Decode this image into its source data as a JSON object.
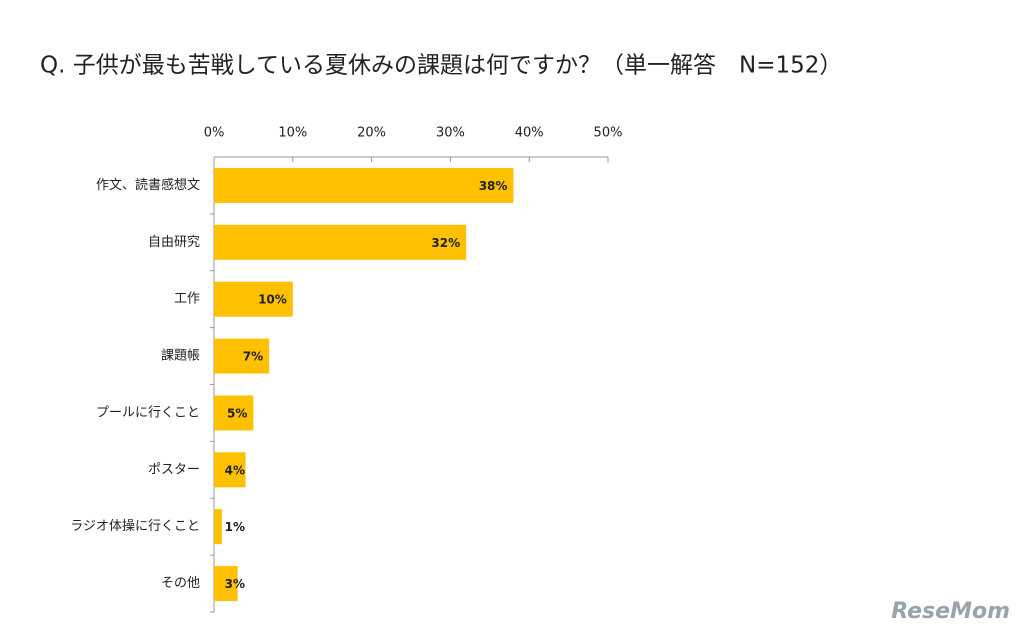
{
  "chart_data": {
    "type": "hbar",
    "title": "Q.  子供が最も苦戦している夏休みの課題は何ですか？（単一解答　N=152）",
    "categories": [
      "作文、読書感想文",
      "自由研究",
      "工作",
      "課題帳",
      "プールに行くこと",
      "ポスター",
      "ラジオ体操に行くこと",
      "その他"
    ],
    "values": [
      38,
      32,
      10,
      7,
      5,
      4,
      1,
      3
    ],
    "value_labels": [
      "38%",
      "32%",
      "10%",
      "7%",
      "5%",
      "4%",
      "1%",
      "3%"
    ],
    "color": "#ffc000",
    "xlim": [
      0,
      50
    ],
    "xticks": [
      {
        "value": 0,
        "label": "0%"
      },
      {
        "value": 10,
        "label": "10%"
      },
      {
        "value": 20,
        "label": "20%"
      },
      {
        "value": 30,
        "label": "30%"
      },
      {
        "value": 40,
        "label": "40%"
      },
      {
        "value": 50,
        "label": "50%"
      }
    ],
    "watermark": "ReseMom"
  }
}
